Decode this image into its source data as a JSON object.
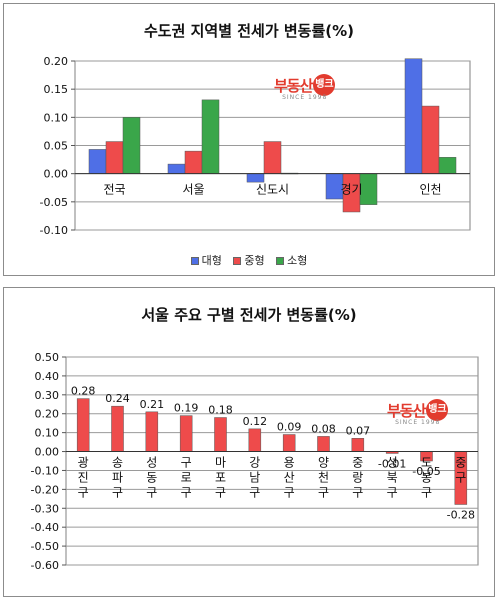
{
  "chart_data": [
    {
      "type": "bar",
      "title": "수도권 지역별 전세가 변동률(%)",
      "categories": [
        "전국",
        "서울",
        "신도시",
        "경기",
        "인천"
      ],
      "series": [
        {
          "name": "대형",
          "color": "#4f6fe6",
          "values": [
            0.043,
            0.017,
            -0.015,
            -0.045,
            0.204
          ]
        },
        {
          "name": "중형",
          "color": "#ee4b4b",
          "values": [
            0.057,
            0.04,
            0.057,
            -0.068,
            0.12
          ]
        },
        {
          "name": "소형",
          "color": "#3aa64a",
          "values": [
            0.1,
            0.131,
            0.001,
            -0.055,
            0.029
          ]
        }
      ],
      "ylim": [
        -0.1,
        0.2
      ],
      "yticks": [
        "-0.10",
        "-0.05",
        "0.00",
        "0.05",
        "0.10",
        "0.15",
        "0.20"
      ],
      "grid": true,
      "legend": "bottom"
    },
    {
      "type": "bar",
      "title": "서울 주요 구별 전세가 변동률(%)",
      "categories": [
        "광진구",
        "송파구",
        "성동구",
        "구로구",
        "마포구",
        "강남구",
        "용산구",
        "양천구",
        "중랑구",
        "성북구",
        "도봉구",
        "중구"
      ],
      "category_label_chars": [
        [
          "광",
          "진",
          "구"
        ],
        [
          "송",
          "파",
          "구"
        ],
        [
          "성",
          "동",
          "구"
        ],
        [
          "구",
          "로",
          "구"
        ],
        [
          "마",
          "포",
          "구"
        ],
        [
          "강",
          "남",
          "구"
        ],
        [
          "용",
          "산",
          "구"
        ],
        [
          "양",
          "천",
          "구"
        ],
        [
          "중",
          "랑",
          "구"
        ],
        [
          "성",
          "북",
          "구"
        ],
        [
          "도",
          "봉",
          "구"
        ],
        [
          "중",
          "구"
        ]
      ],
      "values": [
        0.28,
        0.24,
        0.21,
        0.19,
        0.18,
        0.12,
        0.09,
        0.08,
        0.07,
        -0.01,
        -0.05,
        -0.28
      ],
      "data_labels": [
        "0.28",
        "0.24",
        "0.21",
        "0.19",
        "0.18",
        "0.12",
        "0.09",
        "0.08",
        "0.07",
        "-0.01",
        "-0.05",
        "-0.28"
      ],
      "color": "#ee4b4b",
      "ylim": [
        -0.6,
        0.5
      ],
      "yticks": [
        "-0.60",
        "-0.50",
        "-0.40",
        "-0.30",
        "-0.20",
        "-0.10",
        "0.00",
        "0.10",
        "0.20",
        "0.30",
        "0.40",
        "0.50"
      ],
      "grid": true
    }
  ],
  "watermark": {
    "text": "부동산",
    "circle": "뱅크",
    "sub": "SINCE 1998"
  }
}
